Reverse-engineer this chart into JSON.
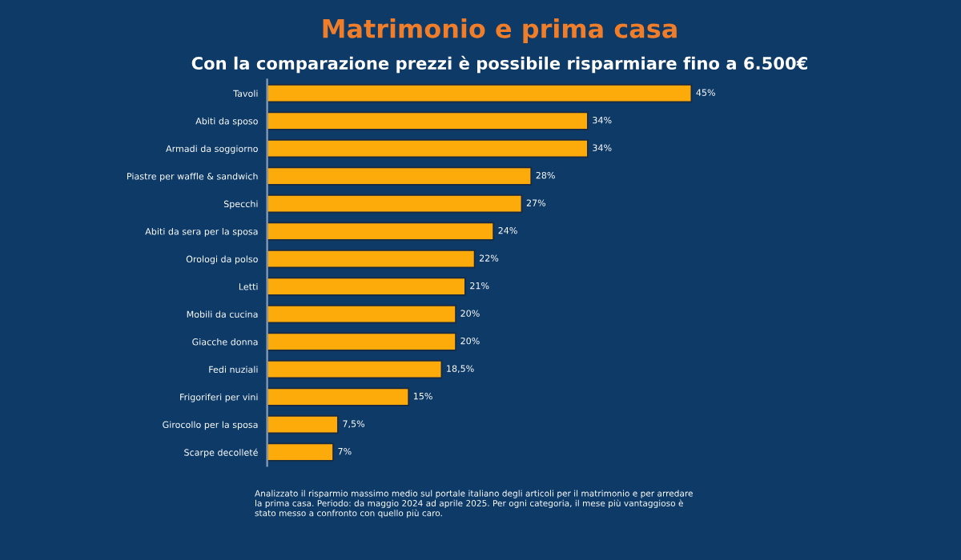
{
  "chart_data": {
    "type": "bar",
    "orientation": "horizontal",
    "title": "Matrimonio e prima casa",
    "subtitle": "Con la comparazione prezzi è possibile risparmiare fino a 6.500€",
    "categories": [
      "Tavoli",
      "Abiti da sposo",
      "Armadi da soggiorno",
      "Piastre per waffle & sandwich",
      "Specchi",
      "Abiti da sera per la sposa",
      "Orologi da polso",
      "Letti",
      "Mobili da cucina",
      "Giacche donna",
      "Fedi nuziali",
      "Frigoriferi per vini",
      "Girocollo per la sposa",
      "Scarpe decolleté"
    ],
    "values": [
      45,
      34,
      34,
      28,
      27,
      24,
      22,
      21,
      20,
      20,
      18.5,
      15,
      7.5,
      7
    ],
    "value_labels": [
      "45%",
      "34%",
      "34%",
      "28%",
      "27%",
      "24%",
      "22%",
      "21%",
      "20%",
      "20%",
      "18,5%",
      "15%",
      "7,5%",
      "7%"
    ],
    "color": "#fdaa0b",
    "grid": false,
    "legend": false,
    "annotations": [
      "Analizzato il risparmio massimo medio sul portale italiano degli articoli per il matrimonio e per arredare la prima casa. Periodo: da maggio 2024 ad aprile 2025. Per ogni categoria, il mese più vantaggioso è stato messo a confronto con quello più caro."
    ]
  }
}
